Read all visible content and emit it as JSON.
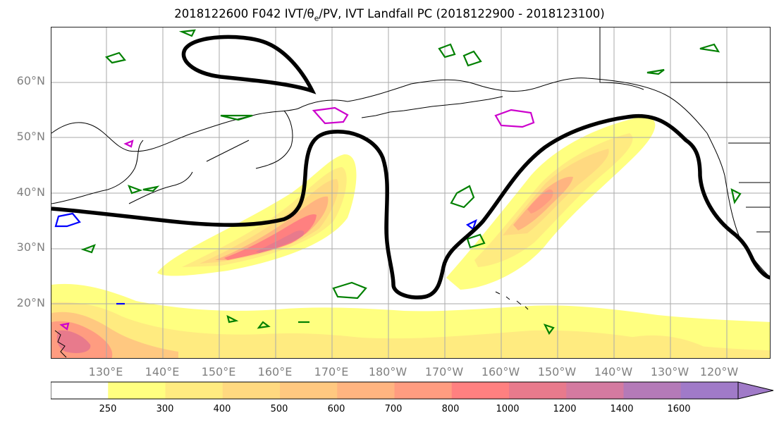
{
  "title": "2018122600 F042 IVT/θe/PV, IVT Landfall PC (2018122900 - 2018123100)",
  "title_parts": {
    "before": "2018122600 F042 IVT/θ",
    "sub": "e",
    "after": "/PV, IVT Landfall PC (2018122900 - 2018123100)"
  },
  "map": {
    "lat_labels": [
      "60°N",
      "50°N",
      "40°N",
      "30°N",
      "20°N"
    ],
    "lon_labels": [
      "130°E",
      "140°E",
      "150°E",
      "160°E",
      "170°E",
      "180°W",
      "170°W",
      "160°W",
      "150°W",
      "140°W",
      "130°W",
      "120°W"
    ],
    "gridline_color": "#aaaaaa",
    "coast_color": "#000000",
    "pc_line_color": "#000000"
  },
  "colorbar": {
    "ticks": [
      "250",
      "300",
      "400",
      "500",
      "600",
      "700",
      "800",
      "1000",
      "1200",
      "1400",
      "1600"
    ],
    "colors": [
      "#ffffff",
      "#ffff80",
      "#ffeb80",
      "#ffd980",
      "#ffc880",
      "#ffb480",
      "#ff9c80",
      "#ff8080",
      "#e87a8c",
      "#d47aa0",
      "#b47ab8",
      "#a07ac8"
    ]
  },
  "ivt_colors": {
    "c250": "#ffff80",
    "c300": "#ffeb80",
    "c400": "#ffd980",
    "c500": "#ffc880",
    "c600": "#ffb480",
    "c700": "#ff9c80",
    "c800": "#ff8080",
    "c1000": "#e87a8c"
  },
  "contour_colors": {
    "theta_e": "#008000",
    "pv_magenta": "#cc00cc",
    "pv_blue": "#0000ff"
  }
}
